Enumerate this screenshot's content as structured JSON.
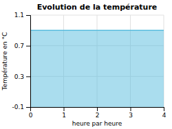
{
  "chart_data": {
    "type": "area",
    "title": "Evolution de la température",
    "xlabel": "heure par heure",
    "ylabel": "Température en °C",
    "x": [
      0,
      4
    ],
    "values": [
      0.9,
      0.9
    ],
    "color": "#55bbdd",
    "xlim": [
      0,
      4
    ],
    "ylim": [
      -0.1,
      1.1
    ],
    "xticks": [
      0,
      1,
      2,
      3,
      4
    ],
    "yticks": [
      -0.1,
      0.3,
      0.7,
      1.1
    ],
    "grid": true
  }
}
